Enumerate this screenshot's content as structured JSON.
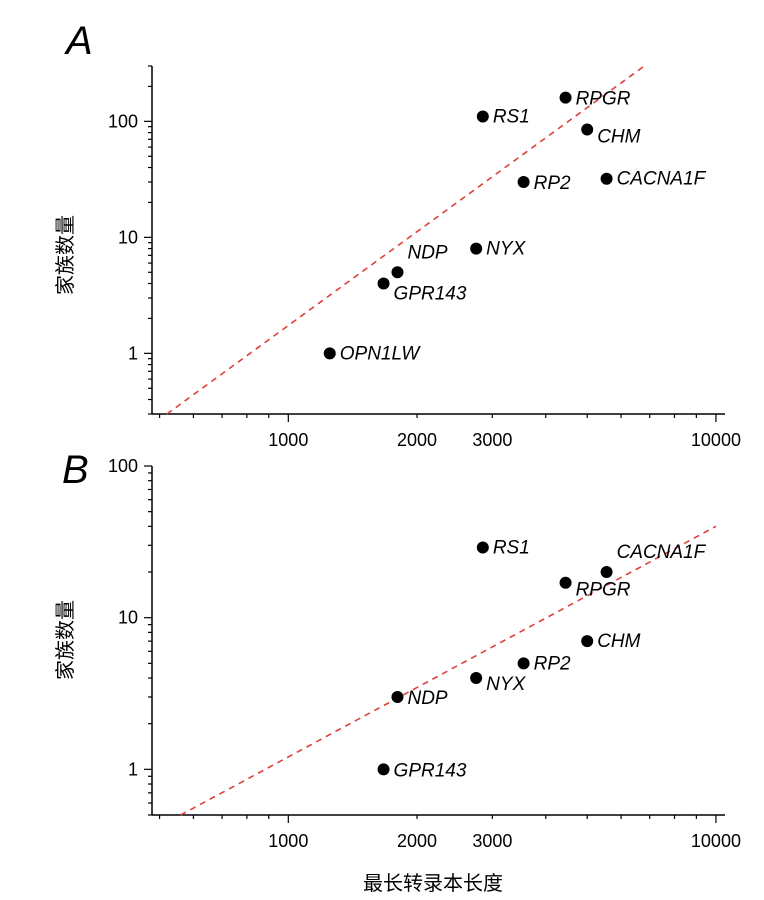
{
  "ylabel": "家族数量",
  "xlabel": "最长转录本长度",
  "chart_data": [
    {
      "panel": "A",
      "type": "scatter",
      "x_scale": "log",
      "y_scale": "log",
      "xlim": [
        480,
        10500
      ],
      "ylim": [
        0.3,
        300
      ],
      "x_ticks": [
        1000,
        2000,
        3000,
        10000
      ],
      "y_ticks": [
        1,
        10,
        100
      ],
      "trendline": {
        "x": [
          520,
          6800
        ],
        "y": [
          0.3,
          300
        ]
      },
      "points": [
        {
          "label": "OPN1LW",
          "x": 1250,
          "y": 1
        },
        {
          "label": "GPR143",
          "x": 1670,
          "y": 4
        },
        {
          "label": "NDP",
          "x": 1800,
          "y": 5
        },
        {
          "label": "NYX",
          "x": 2750,
          "y": 8
        },
        {
          "label": "RS1",
          "x": 2850,
          "y": 110
        },
        {
          "label": "RP2",
          "x": 3550,
          "y": 30
        },
        {
          "label": "RPGR",
          "x": 4450,
          "y": 160
        },
        {
          "label": "CHM",
          "x": 5000,
          "y": 85
        },
        {
          "label": "CACNA1F",
          "x": 5550,
          "y": 32
        }
      ]
    },
    {
      "panel": "B",
      "type": "scatter",
      "x_scale": "log",
      "y_scale": "log",
      "xlim": [
        480,
        10500
      ],
      "ylim": [
        0.5,
        100
      ],
      "x_ticks": [
        1000,
        2000,
        3000,
        10000
      ],
      "y_ticks": [
        1,
        10,
        100
      ],
      "trendline": {
        "x": [
          560,
          10000
        ],
        "y": [
          0.5,
          40
        ]
      },
      "points": [
        {
          "label": "GPR143",
          "x": 1670,
          "y": 1
        },
        {
          "label": "NDP",
          "x": 1800,
          "y": 3
        },
        {
          "label": "NYX",
          "x": 2750,
          "y": 4
        },
        {
          "label": "RP2",
          "x": 3550,
          "y": 5
        },
        {
          "label": "RS1",
          "x": 2850,
          "y": 29
        },
        {
          "label": "RPGR",
          "x": 4450,
          "y": 17
        },
        {
          "label": "CHM",
          "x": 5000,
          "y": 7
        },
        {
          "label": "CACNA1F",
          "x": 5550,
          "y": 20
        }
      ]
    }
  ]
}
